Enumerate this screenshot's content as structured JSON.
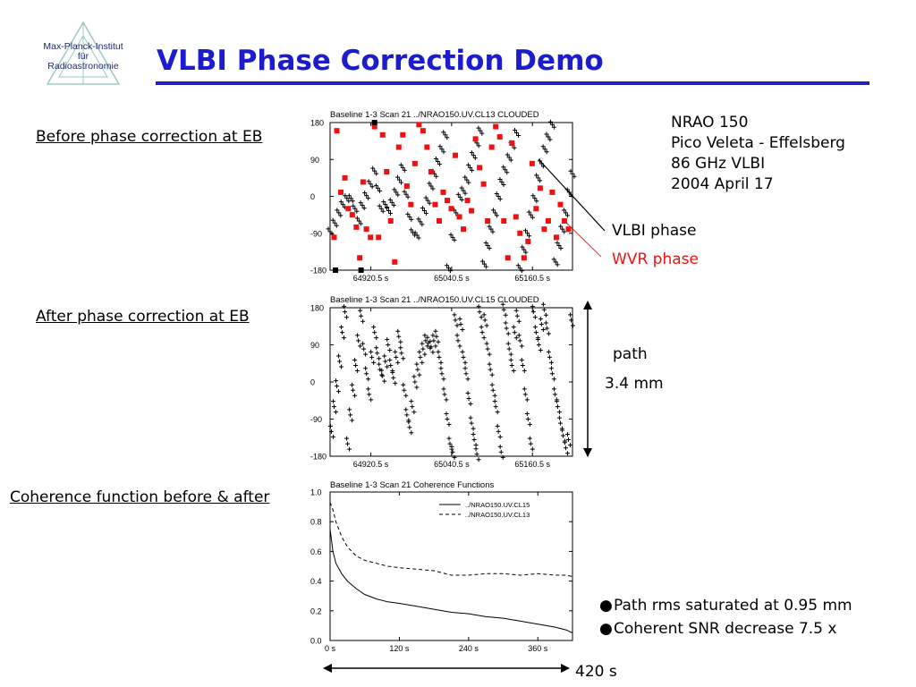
{
  "slide": {
    "title": "VLBI Phase Correction Demo",
    "logo_text": [
      "Max-Planck-Institut",
      "für",
      "Radioastronomie"
    ],
    "section_before": "Before phase correction at EB",
    "section_after": "After phase correction at EB",
    "section_coherence": "Coherence function before & after",
    "info_lines": [
      "NRAO 150",
      "Pico Veleta - Effelsberg",
      "86 GHz VLBI",
      "2004 April 17"
    ],
    "callout_vlbi": "VLBI phase",
    "callout_wvr": "WVR phase",
    "path_label": "path",
    "path_value": "3.4 mm",
    "bullets": [
      "Path rms saturated at 0.95 mm",
      "Coherent SNR decrease 7.5 x"
    ],
    "span_label": "420 s",
    "colors": {
      "title": "#1c1ccc",
      "wvr": "#ee1111",
      "callout_wvr_line": "#ee4444"
    }
  },
  "chart_data": [
    {
      "type": "scatter",
      "title": "Baseline 1-3    Scan 21    ../NRAO150.UV.CL13    CLOUDED",
      "yticks": [
        180,
        90,
        0,
        -90,
        -180
      ],
      "ylim": [
        -180,
        180
      ],
      "xticks": [
        "64920.5 s",
        "65040.5 s",
        "65160.5 s"
      ],
      "xlim": [
        64860,
        65220
      ],
      "series": [
        {
          "points": [
            [
              64860,
              -86
            ],
            [
              64867,
              -65
            ],
            [
              64873,
              -40
            ],
            [
              64879,
              -20
            ],
            [
              64885,
              -5
            ],
            [
              64891,
              -5
            ],
            [
              64897,
              -30
            ],
            [
              64903,
              -60
            ],
            [
              64908,
              -22
            ],
            [
              64914,
              2
            ],
            [
              64920,
              30
            ],
            [
              64926,
              62
            ],
            [
              64931,
              20
            ],
            [
              64936,
              -30
            ],
            [
              64942,
              -20
            ],
            [
              64947,
              -35
            ],
            [
              64952,
              -15
            ],
            [
              64958,
              10
            ],
            [
              64963,
              40
            ],
            [
              64968,
              70
            ],
            [
              64973,
              5
            ],
            [
              64978,
              -50
            ],
            [
              64983,
              -88
            ],
            [
              64989,
              -95
            ],
            [
              64994,
              -62
            ],
            [
              65000,
              -35
            ],
            [
              65005,
              -10
            ],
            [
              65010,
              25
            ],
            [
              65015,
              55
            ],
            [
              65020,
              85
            ],
            [
              65026,
              115
            ],
            [
              65031,
              150
            ],
            [
              65036,
              -175
            ],
            [
              65042,
              -100
            ],
            [
              65047,
              -40
            ],
            [
              65053,
              -2
            ],
            [
              65058,
              14
            ],
            [
              65063,
              40
            ],
            [
              65068,
              70
            ],
            [
              65073,
              100
            ],
            [
              65078,
              130
            ],
            [
              65083,
              160
            ],
            [
              65089,
              -165
            ],
            [
              65094,
              -120
            ],
            [
              65099,
              -80
            ],
            [
              65105,
              -40
            ],
            [
              65110,
              0
            ],
            [
              65115,
              35
            ],
            [
              65120,
              65
            ],
            [
              65126,
              95
            ],
            [
              65131,
              125
            ],
            [
              65137,
              155
            ],
            [
              65142,
              -175
            ],
            [
              65148,
              -130
            ],
            [
              65153,
              -90
            ],
            [
              65158,
              -45
            ],
            [
              65164,
              -5
            ],
            [
              65169,
              45
            ],
            [
              65174,
              80
            ],
            [
              65179,
              115
            ],
            [
              65184,
              145
            ],
            [
              65190,
              175
            ],
            [
              65195,
              -160
            ],
            [
              65200,
              -120
            ],
            [
              65205,
              -80
            ],
            [
              65210,
              -40
            ],
            [
              65215,
              10
            ],
            [
              65220,
              55
            ]
          ]
        },
        {
          "name": "WVR phase",
          "points": [
            [
              64866,
              -100
            ],
            [
              64870,
              160
            ],
            [
              64876,
              10
            ],
            [
              64882,
              45
            ],
            [
              64887,
              -30
            ],
            [
              64893,
              -45
            ],
            [
              64899,
              -75
            ],
            [
              64904,
              -150
            ],
            [
              64909,
              35
            ],
            [
              64914,
              -80
            ],
            [
              64920,
              -100
            ],
            [
              64926,
              170
            ],
            [
              64932,
              -100
            ],
            [
              64938,
              150
            ],
            [
              64944,
              60
            ],
            [
              64950,
              -60
            ],
            [
              64956,
              -160
            ],
            [
              64962,
              120
            ],
            [
              64968,
              150
            ],
            [
              64974,
              25
            ],
            [
              64980,
              -20
            ],
            [
              64986,
              80
            ],
            [
              64992,
              175
            ],
            [
              64998,
              160
            ],
            [
              65004,
              120
            ],
            [
              65010,
              60
            ],
            [
              65016,
              -20
            ],
            [
              65022,
              -60
            ],
            [
              65028,
              10
            ],
            [
              65034,
              -10
            ],
            [
              65040,
              -30
            ],
            [
              65046,
              100
            ],
            [
              65052,
              -50
            ],
            [
              65058,
              -80
            ],
            [
              65064,
              -10
            ],
            [
              65070,
              -35
            ],
            [
              65076,
              140
            ],
            [
              65082,
              70
            ],
            [
              65088,
              30
            ],
            [
              65094,
              -60
            ],
            [
              65100,
              120
            ],
            [
              65106,
              170
            ],
            [
              65112,
              145
            ],
            [
              65118,
              -60
            ],
            [
              65124,
              -150
            ],
            [
              65130,
              130
            ],
            [
              65136,
              -50
            ],
            [
              65142,
              -90
            ],
            [
              65148,
              -150
            ],
            [
              65154,
              -110
            ],
            [
              65160,
              80
            ],
            [
              65166,
              -30
            ],
            [
              65172,
              20
            ],
            [
              65178,
              -80
            ],
            [
              65184,
              -60
            ],
            [
              65190,
              10
            ],
            [
              65196,
              -100
            ],
            [
              65202,
              -20
            ],
            [
              65208,
              -60
            ],
            [
              65214,
              -80
            ]
          ]
        },
        {
          "points": [
            [
              64868,
              -180
            ],
            [
              64926,
              180
            ],
            [
              64906,
              -180
            ]
          ]
        }
      ]
    },
    {
      "type": "scatter",
      "title": "Baseline 1-3    Scan 21    ../NRAO150.UV.CL15    CLOUDED",
      "yticks": [
        180,
        90,
        0,
        -90,
        -180
      ],
      "ylim": [
        -180,
        180
      ],
      "xticks": [
        "64920.5 s",
        "65040.5 s",
        "65160.5 s"
      ],
      "xlim": [
        64860,
        65220
      ],
      "series": [
        {
          "points": [
            [
              64862,
              -120
            ],
            [
              64866,
              -60
            ],
            [
              64870,
              -10
            ],
            [
              64874,
              50
            ],
            [
              64878,
              120
            ],
            [
              64882,
              170
            ],
            [
              64886,
              -150
            ],
            [
              64890,
              -80
            ],
            [
              64894,
              -20
            ],
            [
              64898,
              40
            ],
            [
              64902,
              100
            ],
            [
              64906,
              160
            ],
            [
              64910,
              80
            ],
            [
              64914,
              20
            ],
            [
              64918,
              -30
            ],
            [
              64922,
              60
            ],
            [
              64926,
              120
            ],
            [
              64930,
              70
            ],
            [
              64934,
              30
            ],
            [
              64938,
              15
            ],
            [
              64942,
              50
            ],
            [
              64946,
              90
            ],
            [
              64950,
              40
            ],
            [
              64954,
              10
            ],
            [
              64958,
              60
            ],
            [
              64962,
              110
            ],
            [
              64966,
              70
            ],
            [
              64970,
              -20
            ],
            [
              64974,
              -80
            ],
            [
              64978,
              -110
            ],
            [
              64982,
              -60
            ],
            [
              64986,
              0
            ],
            [
              64990,
              30
            ],
            [
              64994,
              60
            ],
            [
              64998,
              80
            ],
            [
              65002,
              100
            ],
            [
              65006,
              95
            ],
            [
              65010,
              85
            ],
            [
              65014,
              100
            ],
            [
              65018,
              110
            ],
            [
              65022,
              60
            ],
            [
              65026,
              20
            ],
            [
              65030,
              -30
            ],
            [
              65034,
              -90
            ],
            [
              65038,
              -150
            ],
            [
              65042,
              -170
            ],
            [
              65046,
              150
            ],
            [
              65050,
              100
            ],
            [
              65054,
              140
            ],
            [
              65058,
              60
            ],
            [
              65062,
              20
            ],
            [
              65066,
              -40
            ],
            [
              65070,
              -100
            ],
            [
              65074,
              -140
            ],
            [
              65078,
              -175
            ],
            [
              65082,
              170
            ],
            [
              65086,
              120
            ],
            [
              65090,
              150
            ],
            [
              65094,
              80
            ],
            [
              65098,
              30
            ],
            [
              65102,
              -20
            ],
            [
              65106,
              -60
            ],
            [
              65110,
              -120
            ],
            [
              65114,
              -170
            ],
            [
              65118,
              175
            ],
            [
              65122,
              130
            ],
            [
              65126,
              80
            ],
            [
              65130,
              40
            ],
            [
              65134,
              120
            ],
            [
              65138,
              160
            ],
            [
              65142,
              100
            ],
            [
              65146,
              40
            ],
            [
              65150,
              -30
            ],
            [
              65154,
              -90
            ],
            [
              65158,
              -150
            ],
            [
              65162,
              170
            ],
            [
              65166,
              120
            ],
            [
              65170,
              90
            ],
            [
              65174,
              140
            ],
            [
              65178,
              175
            ],
            [
              65182,
              130
            ],
            [
              65186,
              60
            ],
            [
              65190,
              20
            ],
            [
              65194,
              -30
            ],
            [
              65198,
              -60
            ],
            [
              65202,
              -100
            ],
            [
              65206,
              -130
            ],
            [
              65210,
              -160
            ],
            [
              65214,
              -140
            ],
            [
              65218,
              150
            ]
          ]
        }
      ]
    },
    {
      "type": "line",
      "title": "Baseline 1-3    Scan 21    Coherence Functions",
      "yticks": [
        1.0,
        0.8,
        0.6,
        0.4,
        0.2,
        0.0
      ],
      "ylim": [
        0,
        1
      ],
      "xticks": [
        "0 s",
        "120 s",
        "240 s",
        "360 s"
      ],
      "xlim": [
        0,
        420
      ],
      "series": [
        {
          "name": "../NRAO150.UV.CL15",
          "style": "solid",
          "x": [
            0,
            5,
            10,
            20,
            30,
            45,
            60,
            80,
            100,
            120,
            150,
            180,
            210,
            240,
            270,
            300,
            330,
            360,
            390,
            410,
            420
          ],
          "y": [
            0.75,
            0.6,
            0.52,
            0.45,
            0.4,
            0.35,
            0.31,
            0.28,
            0.26,
            0.25,
            0.23,
            0.21,
            0.19,
            0.18,
            0.16,
            0.15,
            0.13,
            0.11,
            0.09,
            0.07,
            0.05
          ]
        },
        {
          "name": "../NRAO150.UV.CL13",
          "style": "dashed",
          "x": [
            0,
            5,
            10,
            20,
            30,
            45,
            60,
            80,
            100,
            120,
            150,
            180,
            210,
            240,
            270,
            300,
            330,
            360,
            390,
            410,
            420
          ],
          "y": [
            0.93,
            0.88,
            0.8,
            0.7,
            0.63,
            0.57,
            0.54,
            0.52,
            0.5,
            0.49,
            0.48,
            0.47,
            0.44,
            0.44,
            0.45,
            0.45,
            0.44,
            0.45,
            0.44,
            0.44,
            0.43
          ]
        }
      ]
    }
  ]
}
